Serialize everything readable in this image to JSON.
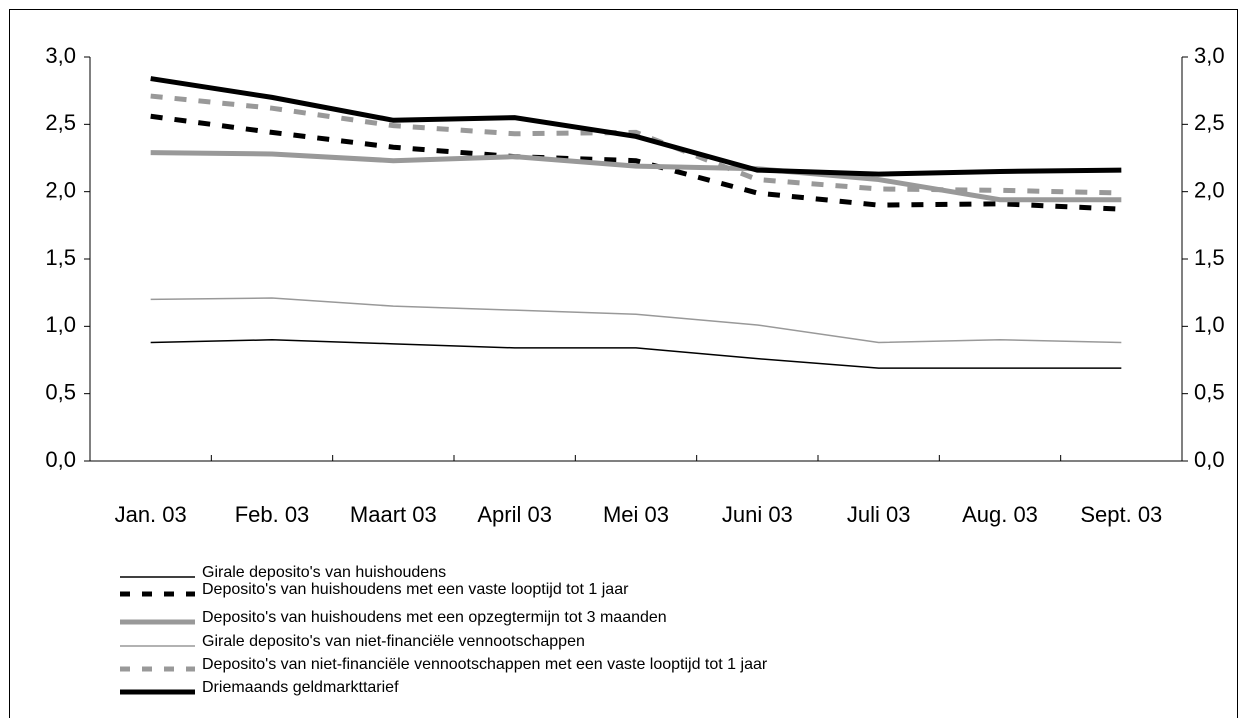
{
  "chart_data": {
    "type": "line",
    "categories": [
      "Jan. 03",
      "Feb. 03",
      "Maart 03",
      "April 03",
      "Mei 03",
      "Juni 03",
      "Juli 03",
      "Aug. 03",
      "Sept. 03"
    ],
    "series": [
      {
        "name": "Girale deposito's van huishoudens",
        "color": "#000000",
        "values": [
          0.88,
          0.9,
          0.87,
          0.84,
          0.84,
          0.76,
          0.69,
          0.69,
          0.69
        ]
      },
      {
        "name": "Deposito's van huishoudens met een vaste looptijd tot 1 jaar",
        "color": "#000000",
        "values": [
          2.56,
          2.44,
          2.33,
          2.26,
          2.23,
          1.99,
          1.9,
          1.91,
          1.87
        ]
      },
      {
        "name": "Deposito's van huishoudens met een opzegtermijn tot 3 maanden",
        "color": "#999999",
        "values": [
          2.29,
          2.28,
          2.23,
          2.26,
          2.19,
          2.17,
          2.09,
          1.94,
          1.94
        ]
      },
      {
        "name": "Girale deposito's van niet-financiële vennootschappen",
        "color": "#999999",
        "values": [
          1.2,
          1.21,
          1.15,
          1.12,
          1.09,
          1.01,
          0.88,
          0.9,
          0.88
        ]
      },
      {
        "name": "Deposito's van niet-financiële vennootschappen met een vaste looptijd tot 1 jaar",
        "color": "#999999",
        "values": [
          2.71,
          2.62,
          2.49,
          2.43,
          2.44,
          2.09,
          2.02,
          2.01,
          1.99
        ]
      },
      {
        "name": "Driemaands geldmarkttarief",
        "color": "#000000",
        "values": [
          2.84,
          2.7,
          2.53,
          2.55,
          2.41,
          2.16,
          2.13,
          2.15,
          2.16
        ]
      }
    ],
    "ylim": [
      0,
      3
    ],
    "yticks": [
      {
        "value": 0,
        "label": "0,0"
      },
      {
        "value": 0.5,
        "label": "0,5"
      },
      {
        "value": 1,
        "label": "1,0"
      },
      {
        "value": 1.5,
        "label": "1,5"
      },
      {
        "value": 2,
        "label": "2,0"
      },
      {
        "value": 2.5,
        "label": "2,5"
      },
      {
        "value": 3,
        "label": "3,0"
      }
    ],
    "y2lim": [
      0,
      3
    ],
    "y2ticks": [
      {
        "value": 0,
        "label": "0,0"
      },
      {
        "value": 0.5,
        "label": "0,5"
      },
      {
        "value": 1,
        "label": "1,0"
      },
      {
        "value": 1.5,
        "label": "1,5"
      },
      {
        "value": 2,
        "label": "2,0"
      },
      {
        "value": 2.5,
        "label": "2,5"
      },
      {
        "value": 3,
        "label": "3,0"
      }
    ],
    "grid": false
  }
}
